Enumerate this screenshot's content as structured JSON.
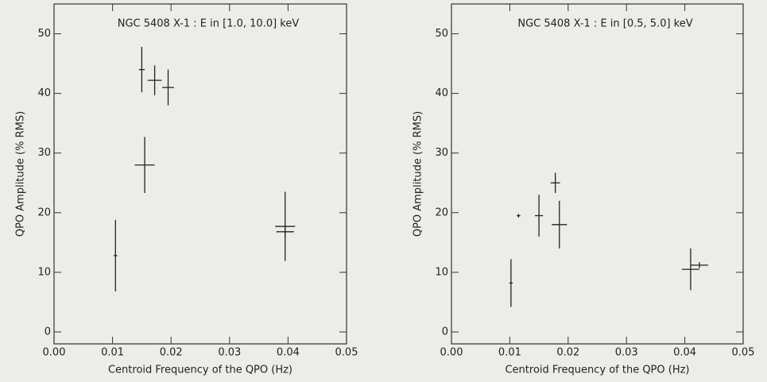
{
  "chart_data": [
    {
      "type": "errorbar",
      "title": "NGC 5408 X-1 : E in [1.0, 10.0] keV",
      "x_label": "Centroid Frequency of the QPO (Hz)",
      "y_label": "QPO Amplitude (% RMS)",
      "xlim": [
        0,
        0.05
      ],
      "ylim": [
        -2,
        55
      ],
      "xticks": [
        {
          "value": 0,
          "label": "0.00"
        },
        {
          "value": 0.01,
          "label": "0.01"
        },
        {
          "value": 0.02,
          "label": "0.02"
        },
        {
          "value": 0.03,
          "label": "0.03"
        },
        {
          "value": 0.04,
          "label": "0.04"
        },
        {
          "value": 0.05,
          "label": "0.05"
        }
      ],
      "yticks": [
        0,
        10,
        20,
        30,
        40,
        50
      ],
      "color": "#222222",
      "series": [
        {
          "x": [
            0.0105,
            0.015,
            0.0172,
            0.0195,
            0.0155,
            0.0395,
            0.0395
          ],
          "y": [
            12.8,
            44,
            42.2,
            41,
            28,
            17.7,
            16.8
          ],
          "xerr": [
            0.0003,
            0.0005,
            0.0012,
            0.001,
            0.0017,
            0.0017,
            0.0015
          ],
          "yerr": [
            6,
            3.8,
            2.5,
            3,
            4.7,
            5.8,
            1
          ]
        }
      ]
    },
    {
      "type": "errorbar",
      "title": "NGC 5408 X-1 : E in [0.5, 5.0] keV",
      "x_label": "Centroid Frequency of the QPO (Hz)",
      "y_label": "QPO Amplitude (% RMS)",
      "xlim": [
        0,
        0.05
      ],
      "ylim": [
        -2,
        55
      ],
      "xticks": [
        {
          "value": 0,
          "label": "0.00"
        },
        {
          "value": 0.01,
          "label": "0.01"
        },
        {
          "value": 0.02,
          "label": "0.02"
        },
        {
          "value": 0.03,
          "label": "0.03"
        },
        {
          "value": 0.04,
          "label": "0.04"
        },
        {
          "value": 0.05,
          "label": "0.05"
        }
      ],
      "yticks": [
        0,
        10,
        20,
        30,
        40,
        50
      ],
      "color": "#222222",
      "series": [
        {
          "x": [
            0.0102,
            0.0115,
            0.015,
            0.0178,
            0.0185,
            0.041,
            0.0425
          ],
          "y": [
            8.2,
            19.5,
            19.5,
            25,
            18,
            10.5,
            11.2
          ],
          "xerr": [
            0.0003,
            0.0003,
            0.0007,
            0.0008,
            0.0013,
            0.0015,
            0.0015
          ],
          "yerr": [
            4,
            0.3,
            3.5,
            1.7,
            4,
            3.5,
            0.5
          ]
        }
      ]
    }
  ]
}
